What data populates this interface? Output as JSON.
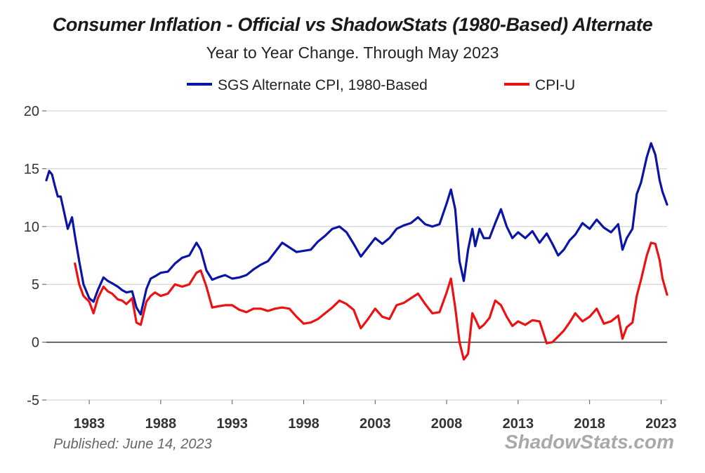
{
  "chart_data": {
    "type": "line",
    "title": "Consumer Inflation - Official vs ShadowStats (1980-Based) Alternate",
    "subtitle": "Year to Year Change. Through May 2023",
    "ylim": [
      -5,
      20
    ],
    "xlim": [
      1980.0,
      2023.42
    ],
    "y_ticks": [
      20,
      15,
      10,
      5,
      0,
      -5
    ],
    "x_ticks": [
      "1983",
      "1988",
      "1993",
      "1998",
      "2003",
      "2008",
      "2013",
      "2018",
      "2023"
    ],
    "x_tick_values": [
      1983,
      1988,
      1993,
      1998,
      2003,
      2008,
      2013,
      2018,
      2023
    ],
    "legend_position": "top",
    "grid": true,
    "colors": {
      "sgs": "#0a14a8",
      "cpiu": "#ee1111",
      "zero_line": "#333333",
      "grid": "#cccccc"
    },
    "series": [
      {
        "name": "SGS Alternate CPI, 1980-Based",
        "color": "#0a14a8",
        "x": [
          1980.0,
          1980.2,
          1980.4,
          1980.6,
          1980.8,
          1981.0,
          1981.2,
          1981.5,
          1981.8,
          1982.0,
          1982.3,
          1982.6,
          1983.0,
          1983.3,
          1983.6,
          1984.0,
          1984.3,
          1984.6,
          1985.0,
          1985.3,
          1985.6,
          1986.0,
          1986.3,
          1986.6,
          1987.0,
          1987.3,
          1987.6,
          1988.0,
          1988.5,
          1989.0,
          1989.5,
          1990.0,
          1990.5,
          1990.8,
          1991.2,
          1991.6,
          1992.0,
          1992.5,
          1993.0,
          1993.5,
          1994.0,
          1994.5,
          1995.0,
          1995.5,
          1996.0,
          1996.5,
          1997.0,
          1997.5,
          1998.0,
          1998.5,
          1999.0,
          1999.5,
          2000.0,
          2000.5,
          2001.0,
          2001.5,
          2002.0,
          2002.5,
          2003.0,
          2003.5,
          2004.0,
          2004.5,
          2005.0,
          2005.5,
          2006.0,
          2006.5,
          2007.0,
          2007.5,
          2008.0,
          2008.3,
          2008.6,
          2008.9,
          2009.2,
          2009.5,
          2009.8,
          2010.0,
          2010.3,
          2010.6,
          2011.0,
          2011.4,
          2011.8,
          2012.2,
          2012.6,
          2013.0,
          2013.5,
          2014.0,
          2014.5,
          2015.0,
          2015.4,
          2015.8,
          2016.2,
          2016.6,
          2017.0,
          2017.5,
          2018.0,
          2018.5,
          2019.0,
          2019.5,
          2020.0,
          2020.3,
          2020.6,
          2021.0,
          2021.3,
          2021.6,
          2022.0,
          2022.3,
          2022.6,
          2022.9,
          2023.1,
          2023.42
        ],
        "values": [
          14.0,
          14.8,
          14.5,
          13.5,
          12.6,
          12.6,
          11.5,
          9.8,
          10.8,
          9.2,
          7.0,
          5.0,
          3.8,
          3.5,
          4.5,
          5.6,
          5.3,
          5.1,
          4.8,
          4.5,
          4.3,
          4.4,
          3.0,
          2.4,
          4.6,
          5.5,
          5.7,
          6.0,
          6.1,
          6.8,
          7.3,
          7.5,
          8.6,
          8.0,
          6.2,
          5.4,
          5.6,
          5.8,
          5.5,
          5.6,
          5.8,
          6.3,
          6.7,
          7.0,
          7.8,
          8.6,
          8.2,
          7.8,
          7.9,
          8.0,
          8.7,
          9.2,
          9.8,
          10.0,
          9.5,
          8.5,
          7.4,
          8.2,
          9.0,
          8.5,
          9.0,
          9.8,
          10.1,
          10.3,
          10.8,
          10.2,
          10.0,
          10.2,
          12.0,
          13.2,
          11.5,
          7.0,
          5.3,
          8.0,
          9.8,
          8.3,
          9.8,
          9.0,
          9.0,
          10.3,
          11.5,
          10.0,
          9.0,
          9.5,
          9.0,
          9.6,
          8.6,
          9.4,
          8.5,
          7.5,
          8.0,
          8.8,
          9.3,
          10.3,
          9.8,
          10.6,
          9.9,
          9.5,
          10.2,
          8.0,
          9.0,
          9.8,
          12.8,
          13.8,
          16.0,
          17.2,
          16.2,
          14.0,
          13.0,
          11.9
        ]
      },
      {
        "name": "CPI-U",
        "color": "#ee1111",
        "x": [
          1982.0,
          1982.3,
          1982.6,
          1983.0,
          1983.3,
          1983.6,
          1984.0,
          1984.3,
          1984.6,
          1985.0,
          1985.3,
          1985.6,
          1986.0,
          1986.3,
          1986.6,
          1987.0,
          1987.3,
          1987.6,
          1988.0,
          1988.5,
          1989.0,
          1989.5,
          1990.0,
          1990.5,
          1990.8,
          1991.2,
          1991.6,
          1992.0,
          1992.5,
          1993.0,
          1993.5,
          1994.0,
          1994.5,
          1995.0,
          1995.5,
          1996.0,
          1996.5,
          1997.0,
          1997.5,
          1998.0,
          1998.5,
          1999.0,
          1999.5,
          2000.0,
          2000.5,
          2001.0,
          2001.5,
          2002.0,
          2002.5,
          2003.0,
          2003.5,
          2004.0,
          2004.5,
          2005.0,
          2005.5,
          2006.0,
          2006.5,
          2007.0,
          2007.5,
          2008.0,
          2008.3,
          2008.6,
          2008.9,
          2009.2,
          2009.5,
          2009.8,
          2010.0,
          2010.3,
          2010.6,
          2011.0,
          2011.4,
          2011.8,
          2012.2,
          2012.6,
          2013.0,
          2013.5,
          2014.0,
          2014.5,
          2015.0,
          2015.4,
          2015.8,
          2016.2,
          2016.6,
          2017.0,
          2017.5,
          2018.0,
          2018.5,
          2019.0,
          2019.5,
          2020.0,
          2020.3,
          2020.6,
          2021.0,
          2021.3,
          2021.6,
          2022.0,
          2022.3,
          2022.6,
          2022.9,
          2023.1,
          2023.42
        ],
        "values": [
          6.8,
          5.0,
          4.0,
          3.5,
          2.5,
          3.8,
          4.8,
          4.4,
          4.2,
          3.7,
          3.6,
          3.3,
          3.8,
          1.7,
          1.5,
          3.5,
          4.0,
          4.3,
          4.0,
          4.2,
          5.0,
          4.8,
          5.0,
          6.0,
          6.2,
          4.8,
          3.0,
          3.1,
          3.2,
          3.2,
          2.8,
          2.6,
          2.9,
          2.9,
          2.7,
          2.9,
          3.0,
          2.9,
          2.2,
          1.6,
          1.7,
          2.0,
          2.5,
          3.0,
          3.6,
          3.3,
          2.8,
          1.2,
          2.0,
          2.9,
          2.2,
          2.0,
          3.2,
          3.4,
          3.8,
          4.2,
          3.3,
          2.5,
          2.6,
          4.3,
          5.5,
          3.0,
          0.0,
          -1.5,
          -1.0,
          2.5,
          2.0,
          1.2,
          1.5,
          2.1,
          3.6,
          3.2,
          2.2,
          1.4,
          1.8,
          1.5,
          1.9,
          1.8,
          -0.1,
          0.0,
          0.5,
          1.0,
          1.7,
          2.5,
          1.8,
          2.2,
          2.9,
          1.6,
          1.8,
          2.3,
          0.3,
          1.3,
          1.7,
          4.0,
          5.4,
          7.5,
          8.6,
          8.5,
          7.1,
          5.5,
          4.1
        ]
      }
    ]
  },
  "footer": {
    "published": "Published: June 14, 2023",
    "watermark": "ShadowStats.com"
  }
}
